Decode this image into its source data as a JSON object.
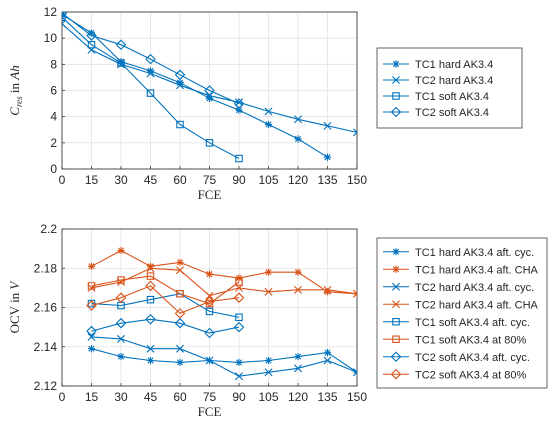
{
  "colors": {
    "blue": "#0072BD",
    "orange": "#D95319",
    "axis": "#262626",
    "grid": "#E3E3E3"
  },
  "chart_data": [
    {
      "type": "line",
      "xlabel": "FCE",
      "ylabel_main": "C",
      "ylabel_sub": "res",
      "ylabel_rest": " in ",
      "ylabel_unit": "Ah",
      "xlim": [
        0,
        150
      ],
      "ylim": [
        0,
        12
      ],
      "x_ticks": [
        "0",
        "15",
        "30",
        "45",
        "60",
        "75",
        "90",
        "105",
        "120",
        "135",
        "150"
      ],
      "y_ticks": [
        "0",
        "2",
        "4",
        "6",
        "8",
        "10",
        "12"
      ],
      "grid": true,
      "legend_position": "right",
      "series": [
        {
          "name": "TC1 hard AK3.4",
          "marker": "asterisk",
          "color": "blue",
          "x": [
            0,
            15,
            30,
            45,
            60,
            75,
            90,
            105,
            120,
            135
          ],
          "y": [
            11.8,
            10.4,
            8.2,
            7.5,
            6.6,
            5.4,
            4.5,
            3.4,
            2.3,
            0.9
          ]
        },
        {
          "name": "TC2 hard AK3.4",
          "marker": "x",
          "color": "blue",
          "x": [
            0,
            15,
            30,
            45,
            60,
            75,
            90,
            105,
            120,
            135,
            150
          ],
          "y": [
            11.1,
            9.1,
            8.0,
            7.3,
            6.4,
            5.6,
            5.1,
            4.4,
            3.8,
            3.3,
            2.8
          ]
        },
        {
          "name": "TC1 soft AK3.4",
          "marker": "square",
          "color": "blue",
          "x": [
            0,
            15,
            30,
            45,
            60,
            75,
            90
          ],
          "y": [
            11.6,
            9.5,
            8.1,
            5.8,
            3.4,
            2.0,
            0.8
          ]
        },
        {
          "name": "TC2 soft AK3.4",
          "marker": "diamond",
          "color": "blue",
          "x": [
            0,
            15,
            30,
            45,
            60,
            75,
            90
          ],
          "y": [
            11.9,
            10.2,
            9.5,
            8.4,
            7.2,
            6.0,
            5.0
          ]
        }
      ]
    },
    {
      "type": "line",
      "xlabel": "FCE",
      "ylabel_main": "OCV in ",
      "ylabel_unit": "V",
      "xlim": [
        0,
        150
      ],
      "ylim": [
        2.12,
        2.2
      ],
      "x_ticks": [
        "0",
        "15",
        "30",
        "45",
        "60",
        "75",
        "90",
        "105",
        "120",
        "135",
        "150"
      ],
      "y_ticks": [
        "2.12",
        "2.14",
        "2.16",
        "2.18",
        "2.2"
      ],
      "grid": true,
      "legend_position": "right",
      "series": [
        {
          "name": "TC1 hard AK3.4 aft. cyc.",
          "marker": "asterisk",
          "color": "blue",
          "x": [
            15,
            30,
            45,
            60,
            75,
            90,
            105,
            120,
            135,
            150
          ],
          "y": [
            2.139,
            2.135,
            2.133,
            2.132,
            2.133,
            2.132,
            2.133,
            2.135,
            2.137,
            2.127
          ]
        },
        {
          "name": "TC1 hard AK3.4 aft. CHA",
          "marker": "asterisk",
          "color": "orange",
          "x": [
            15,
            30,
            45,
            60,
            75,
            90,
            105,
            120,
            135,
            150
          ],
          "y": [
            2.181,
            2.189,
            2.181,
            2.183,
            2.177,
            2.175,
            2.178,
            2.178,
            2.168,
            2.167
          ]
        },
        {
          "name": "TC2 hard AK3.4 aft. cyc.",
          "marker": "x",
          "color": "blue",
          "x": [
            15,
            30,
            45,
            60,
            75,
            90,
            105,
            120,
            135,
            150
          ],
          "y": [
            2.145,
            2.144,
            2.139,
            2.139,
            2.133,
            2.125,
            2.127,
            2.129,
            2.133,
            2.127
          ]
        },
        {
          "name": "TC2 hard AK3.4 aft. CHA",
          "marker": "x",
          "color": "orange",
          "x": [
            15,
            30,
            45,
            60,
            75,
            90,
            105,
            120,
            135,
            150
          ],
          "y": [
            2.17,
            2.173,
            2.18,
            2.179,
            2.166,
            2.17,
            2.168,
            2.169,
            2.169,
            2.167
          ]
        },
        {
          "name": "TC1 soft AK3.4 aft. cyc.",
          "marker": "square",
          "color": "blue",
          "x": [
            15,
            30,
            45,
            60,
            75,
            90
          ],
          "y": [
            2.162,
            2.161,
            2.164,
            2.167,
            2.158,
            2.155
          ]
        },
        {
          "name": "TC1 soft AK3.4 at 80%",
          "marker": "square",
          "color": "orange",
          "x": [
            15,
            30,
            45,
            60,
            75,
            90
          ],
          "y": [
            2.171,
            2.174,
            2.176,
            2.167,
            2.162,
            2.173
          ]
        },
        {
          "name": "TC2 soft AK3.4 aft. cyc.",
          "marker": "diamond",
          "color": "blue",
          "x": [
            15,
            30,
            45,
            60,
            75,
            90
          ],
          "y": [
            2.148,
            2.152,
            2.154,
            2.152,
            2.147,
            2.15
          ]
        },
        {
          "name": "TC2 soft AK3.4 at 80%",
          "marker": "diamond",
          "color": "orange",
          "x": [
            15,
            30,
            45,
            60,
            75,
            90
          ],
          "y": [
            2.161,
            2.165,
            2.171,
            2.157,
            2.163,
            2.165
          ]
        }
      ]
    }
  ]
}
